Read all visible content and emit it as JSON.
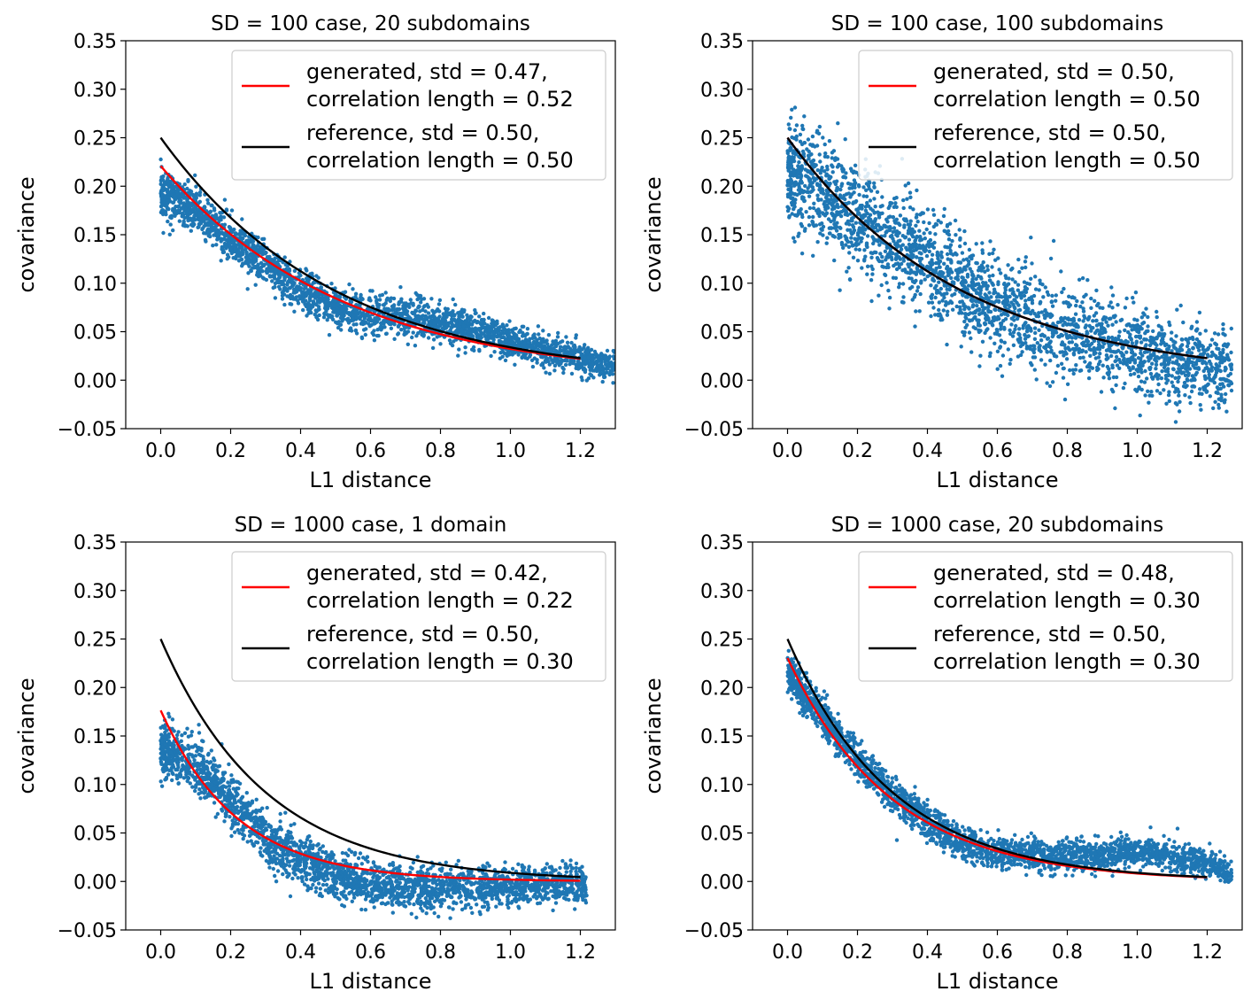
{
  "figure": {
    "layout": "2x2 grid"
  },
  "chart_data": [
    {
      "type": "scatter",
      "title": "SD = 100 case, 20 subdomains",
      "xlabel": "L1 distance",
      "ylabel": "covariance",
      "xlim": [
        -0.1,
        1.3
      ],
      "ylim": [
        -0.05,
        0.35
      ],
      "xticks": [
        "0.0",
        "0.2",
        "0.4",
        "0.6",
        "0.8",
        "1.0",
        "1.2"
      ],
      "yticks": [
        "−0.05",
        "0.00",
        "0.05",
        "0.10",
        "0.15",
        "0.20",
        "0.25",
        "0.30",
        "0.35"
      ],
      "legend_position": "top-right",
      "scatter": {
        "color": "#1f77b4",
        "x_range": [
          0.0,
          1.3
        ],
        "trend": [
          [
            0.0,
            0.195
          ],
          [
            0.1,
            0.175
          ],
          [
            0.2,
            0.145
          ],
          [
            0.3,
            0.118
          ],
          [
            0.4,
            0.092
          ],
          [
            0.5,
            0.075
          ],
          [
            0.6,
            0.067
          ],
          [
            0.7,
            0.065
          ],
          [
            0.8,
            0.06
          ],
          [
            0.9,
            0.052
          ],
          [
            1.0,
            0.04
          ],
          [
            1.1,
            0.03
          ],
          [
            1.2,
            0.022
          ],
          [
            1.3,
            0.013
          ]
        ],
        "spread": 0.012
      },
      "series": [
        {
          "name": "generated",
          "label_line1": "generated, std = 0.47,",
          "label_line2": "correlation length = 0.52",
          "color": "#ff0000",
          "std": 0.47,
          "correlation_length": 0.52,
          "x_range": [
            0.0,
            1.2
          ]
        },
        {
          "name": "reference",
          "label_line1": "reference, std = 0.50,",
          "label_line2": "correlation length = 0.50",
          "color": "#000000",
          "std": 0.5,
          "correlation_length": 0.5,
          "x_range": [
            0.0,
            1.2
          ]
        }
      ]
    },
    {
      "type": "scatter",
      "title": "SD = 100 case, 100 subdomains",
      "xlabel": "L1 distance",
      "ylabel": "covariance",
      "xlim": [
        -0.1,
        1.3
      ],
      "ylim": [
        -0.05,
        0.35
      ],
      "xticks": [
        "0.0",
        "0.2",
        "0.4",
        "0.6",
        "0.8",
        "1.0",
        "1.2"
      ],
      "yticks": [
        "−0.05",
        "0.00",
        "0.05",
        "0.10",
        "0.15",
        "0.20",
        "0.25",
        "0.30",
        "0.35"
      ],
      "legend_position": "top-right",
      "scatter": {
        "color": "#1f77b4",
        "x_range": [
          0.0,
          1.27
        ],
        "trend": [
          [
            0.0,
            0.215
          ],
          [
            0.1,
            0.195
          ],
          [
            0.2,
            0.17
          ],
          [
            0.3,
            0.145
          ],
          [
            0.4,
            0.12
          ],
          [
            0.5,
            0.095
          ],
          [
            0.6,
            0.075
          ],
          [
            0.7,
            0.06
          ],
          [
            0.8,
            0.05
          ],
          [
            0.9,
            0.04
          ],
          [
            1.0,
            0.03
          ],
          [
            1.1,
            0.022
          ],
          [
            1.2,
            0.015
          ],
          [
            1.27,
            0.012
          ]
        ],
        "spread": 0.03
      },
      "series": [
        {
          "name": "generated",
          "label_line1": "generated, std = 0.50,",
          "label_line2": "correlation length = 0.50",
          "color": "#ff0000",
          "std": 0.5,
          "correlation_length": 0.5,
          "x_range": [
            0.0,
            1.2
          ]
        },
        {
          "name": "reference",
          "label_line1": "reference, std = 0.50,",
          "label_line2": "correlation length = 0.50",
          "color": "#000000",
          "std": 0.5,
          "correlation_length": 0.5,
          "x_range": [
            0.0,
            1.2
          ]
        }
      ]
    },
    {
      "type": "scatter",
      "title": "SD = 1000 case, 1 domain",
      "xlabel": "L1 distance",
      "ylabel": "covariance",
      "xlim": [
        -0.1,
        1.3
      ],
      "ylim": [
        -0.05,
        0.35
      ],
      "xticks": [
        "0.0",
        "0.2",
        "0.4",
        "0.6",
        "0.8",
        "1.0",
        "1.2"
      ],
      "yticks": [
        "−0.05",
        "0.00",
        "0.05",
        "0.10",
        "0.15",
        "0.20",
        "0.25",
        "0.30",
        "0.35"
      ],
      "legend_position": "top-right",
      "scatter": {
        "color": "#1f77b4",
        "x_range": [
          0.0,
          1.22
        ],
        "trend": [
          [
            0.0,
            0.135
          ],
          [
            0.1,
            0.12
          ],
          [
            0.2,
            0.085
          ],
          [
            0.3,
            0.045
          ],
          [
            0.4,
            0.02
          ],
          [
            0.5,
            0.005
          ],
          [
            0.6,
            -0.003
          ],
          [
            0.7,
            -0.006
          ],
          [
            0.8,
            -0.007
          ],
          [
            0.9,
            -0.006
          ],
          [
            1.0,
            -0.004
          ],
          [
            1.1,
            -0.002
          ],
          [
            1.22,
            -0.003
          ]
        ],
        "spread": 0.014
      },
      "series": [
        {
          "name": "generated",
          "label_line1": "generated, std = 0.42,",
          "label_line2": "correlation length = 0.22",
          "color": "#ff0000",
          "std": 0.42,
          "correlation_length": 0.22,
          "x_range": [
            0.0,
            1.2
          ]
        },
        {
          "name": "reference",
          "label_line1": "reference, std = 0.50,",
          "label_line2": "correlation length = 0.30",
          "color": "#000000",
          "std": 0.5,
          "correlation_length": 0.3,
          "x_range": [
            0.0,
            1.2
          ]
        }
      ]
    },
    {
      "type": "scatter",
      "title": "SD = 1000 case, 20 subdomains",
      "xlabel": "L1 distance",
      "ylabel": "covariance",
      "xlim": [
        -0.1,
        1.3
      ],
      "ylim": [
        -0.05,
        0.35
      ],
      "xticks": [
        "0.0",
        "0.2",
        "0.4",
        "0.6",
        "0.8",
        "1.0",
        "1.2"
      ],
      "yticks": [
        "−0.05",
        "0.00",
        "0.05",
        "0.10",
        "0.15",
        "0.20",
        "0.25",
        "0.30",
        "0.35"
      ],
      "legend_position": "top-right",
      "scatter": {
        "color": "#1f77b4",
        "x_range": [
          0.0,
          1.27
        ],
        "trend": [
          [
            0.0,
            0.215
          ],
          [
            0.1,
            0.17
          ],
          [
            0.2,
            0.125
          ],
          [
            0.3,
            0.09
          ],
          [
            0.4,
            0.062
          ],
          [
            0.5,
            0.04
          ],
          [
            0.6,
            0.03
          ],
          [
            0.7,
            0.028
          ],
          [
            0.8,
            0.027
          ],
          [
            0.9,
            0.028
          ],
          [
            1.0,
            0.03
          ],
          [
            1.1,
            0.026
          ],
          [
            1.2,
            0.018
          ],
          [
            1.27,
            0.008
          ]
        ],
        "spread": 0.01
      },
      "series": [
        {
          "name": "generated",
          "label_line1": "generated, std = 0.48,",
          "label_line2": "correlation length = 0.30",
          "color": "#ff0000",
          "std": 0.48,
          "correlation_length": 0.3,
          "x_range": [
            0.0,
            1.2
          ]
        },
        {
          "name": "reference",
          "label_line1": "reference, std = 0.50,",
          "label_line2": "correlation length = 0.30",
          "color": "#000000",
          "std": 0.5,
          "correlation_length": 0.3,
          "x_range": [
            0.0,
            1.2
          ]
        }
      ]
    }
  ]
}
